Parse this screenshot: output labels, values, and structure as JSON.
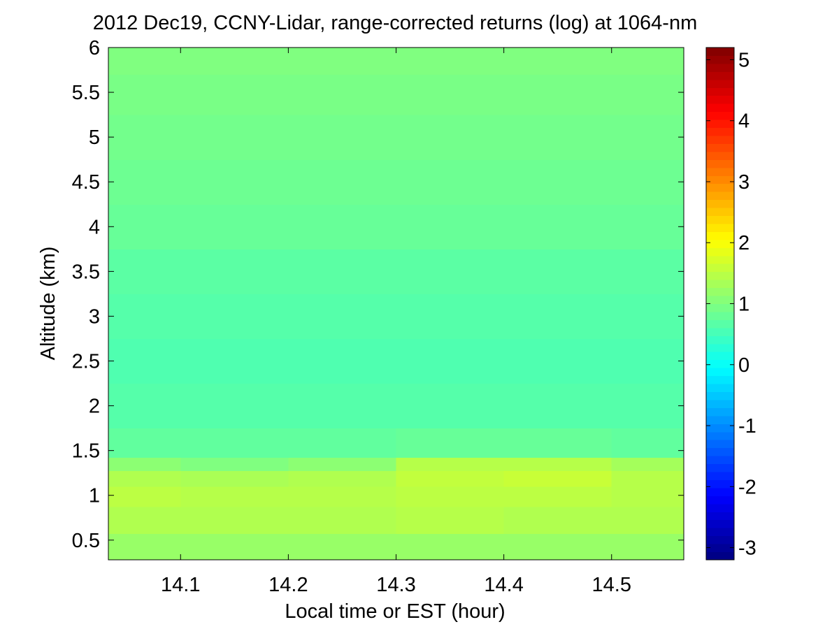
{
  "chart_data": {
    "type": "heatmap",
    "title": "2012 Dec19, CCNY-Lidar, range-corrected returns (log) at 1064-nm",
    "xlabel": "Local time or EST (hour)",
    "ylabel": "Altitude (km)",
    "xlim": [
      14.033,
      14.567
    ],
    "ylim": [
      0.28,
      6.0
    ],
    "xticks": [
      14.1,
      14.2,
      14.3,
      14.4,
      14.5
    ],
    "xtick_labels": [
      "14.1",
      "14.2",
      "14.3",
      "14.4",
      "14.5"
    ],
    "yticks": [
      0.5,
      1,
      1.5,
      2,
      2.5,
      3,
      3.5,
      4,
      4.5,
      5,
      5.5,
      6
    ],
    "ytick_labels": [
      "0.5",
      "1",
      "1.5",
      "2",
      "2.5",
      "3",
      "3.5",
      "4",
      "4.5",
      "5",
      "5.5",
      "6"
    ],
    "colorbar": {
      "colormap": "jet",
      "clim": [
        -3.2,
        5.2
      ],
      "ticks": [
        -3,
        -2,
        -1,
        0,
        1,
        2,
        3,
        4,
        5
      ],
      "tick_labels": [
        "-3",
        "-2",
        "-1",
        "0",
        "1",
        "2",
        "3",
        "4",
        "5"
      ]
    },
    "x_centers": [
      14.05,
      14.15,
      14.25,
      14.35,
      14.45,
      14.55
    ],
    "y_centers": [
      0.4,
      0.75,
      1.0,
      1.2,
      1.35,
      1.5,
      2.0,
      2.5,
      3.0,
      3.5,
      4.0,
      4.5,
      5.0,
      5.5,
      5.9
    ],
    "z": [
      [
        1.2,
        1.2,
        1.2,
        1.2,
        1.2,
        1.2
      ],
      [
        1.4,
        1.4,
        1.4,
        1.45,
        1.4,
        1.4
      ],
      [
        1.5,
        1.45,
        1.45,
        1.5,
        1.5,
        1.45
      ],
      [
        1.4,
        1.35,
        1.4,
        1.55,
        1.6,
        1.45
      ],
      [
        1.1,
        1.0,
        1.1,
        1.45,
        1.45,
        1.3
      ],
      [
        0.75,
        0.75,
        0.75,
        0.8,
        0.8,
        0.75
      ],
      [
        0.65,
        0.65,
        0.65,
        0.65,
        0.65,
        0.65
      ],
      [
        0.6,
        0.6,
        0.6,
        0.6,
        0.6,
        0.6
      ],
      [
        0.65,
        0.65,
        0.65,
        0.65,
        0.65,
        0.65
      ],
      [
        0.7,
        0.7,
        0.7,
        0.7,
        0.7,
        0.7
      ],
      [
        0.8,
        0.8,
        0.8,
        0.8,
        0.8,
        0.8
      ],
      [
        0.85,
        0.85,
        0.85,
        0.85,
        0.85,
        0.85
      ],
      [
        0.9,
        0.9,
        0.9,
        0.9,
        0.9,
        0.9
      ],
      [
        0.95,
        0.95,
        0.95,
        0.95,
        0.95,
        0.95
      ],
      [
        1.0,
        1.0,
        1.0,
        1.0,
        1.0,
        1.0
      ]
    ]
  }
}
